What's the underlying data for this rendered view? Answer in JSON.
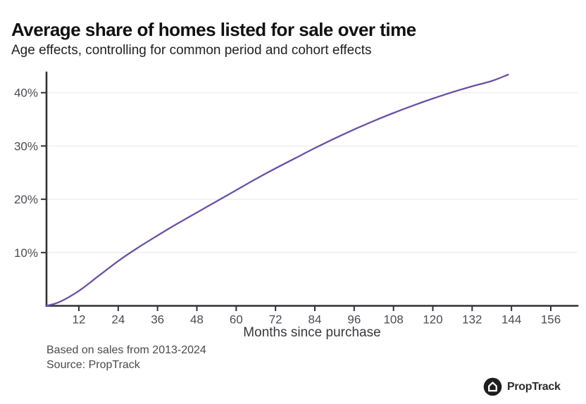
{
  "chart_data": {
    "type": "line",
    "title": "Average share of homes listed for sale over time",
    "subtitle": "Age effects, controlling for common period and cohort effects",
    "xlabel": "Months since purchase",
    "ylabel": "",
    "xlim": [
      2,
      164
    ],
    "ylim": [
      0,
      44
    ],
    "grid": "horizontal",
    "legend": "none",
    "line_color": "#6B51A3",
    "x_ticks": [
      12,
      24,
      36,
      48,
      60,
      72,
      84,
      96,
      108,
      120,
      132,
      144,
      156
    ],
    "y_ticks": [
      {
        "value": 10,
        "label": "10%"
      },
      {
        "value": 20,
        "label": "20%"
      },
      {
        "value": 30,
        "label": "30%"
      },
      {
        "value": 40,
        "label": "40%"
      }
    ],
    "series": [
      {
        "name": "Average share of homes listed",
        "x": [
          2,
          6,
          12,
          18,
          24,
          30,
          36,
          42,
          48,
          54,
          60,
          66,
          72,
          78,
          84,
          90,
          96,
          102,
          108,
          114,
          120,
          126,
          132,
          138,
          143
        ],
        "y": [
          0,
          0.7,
          2.8,
          5.6,
          8.4,
          10.9,
          13.2,
          15.4,
          17.5,
          19.6,
          21.7,
          23.8,
          25.8,
          27.7,
          29.6,
          31.4,
          33.1,
          34.7,
          36.2,
          37.6,
          38.9,
          40.1,
          41.2,
          42.2,
          43.4
        ]
      }
    ]
  },
  "footer": {
    "note": "Based on sales from 2013-2024",
    "source": "Source: PropTrack",
    "logo_text": "PropTrack"
  }
}
